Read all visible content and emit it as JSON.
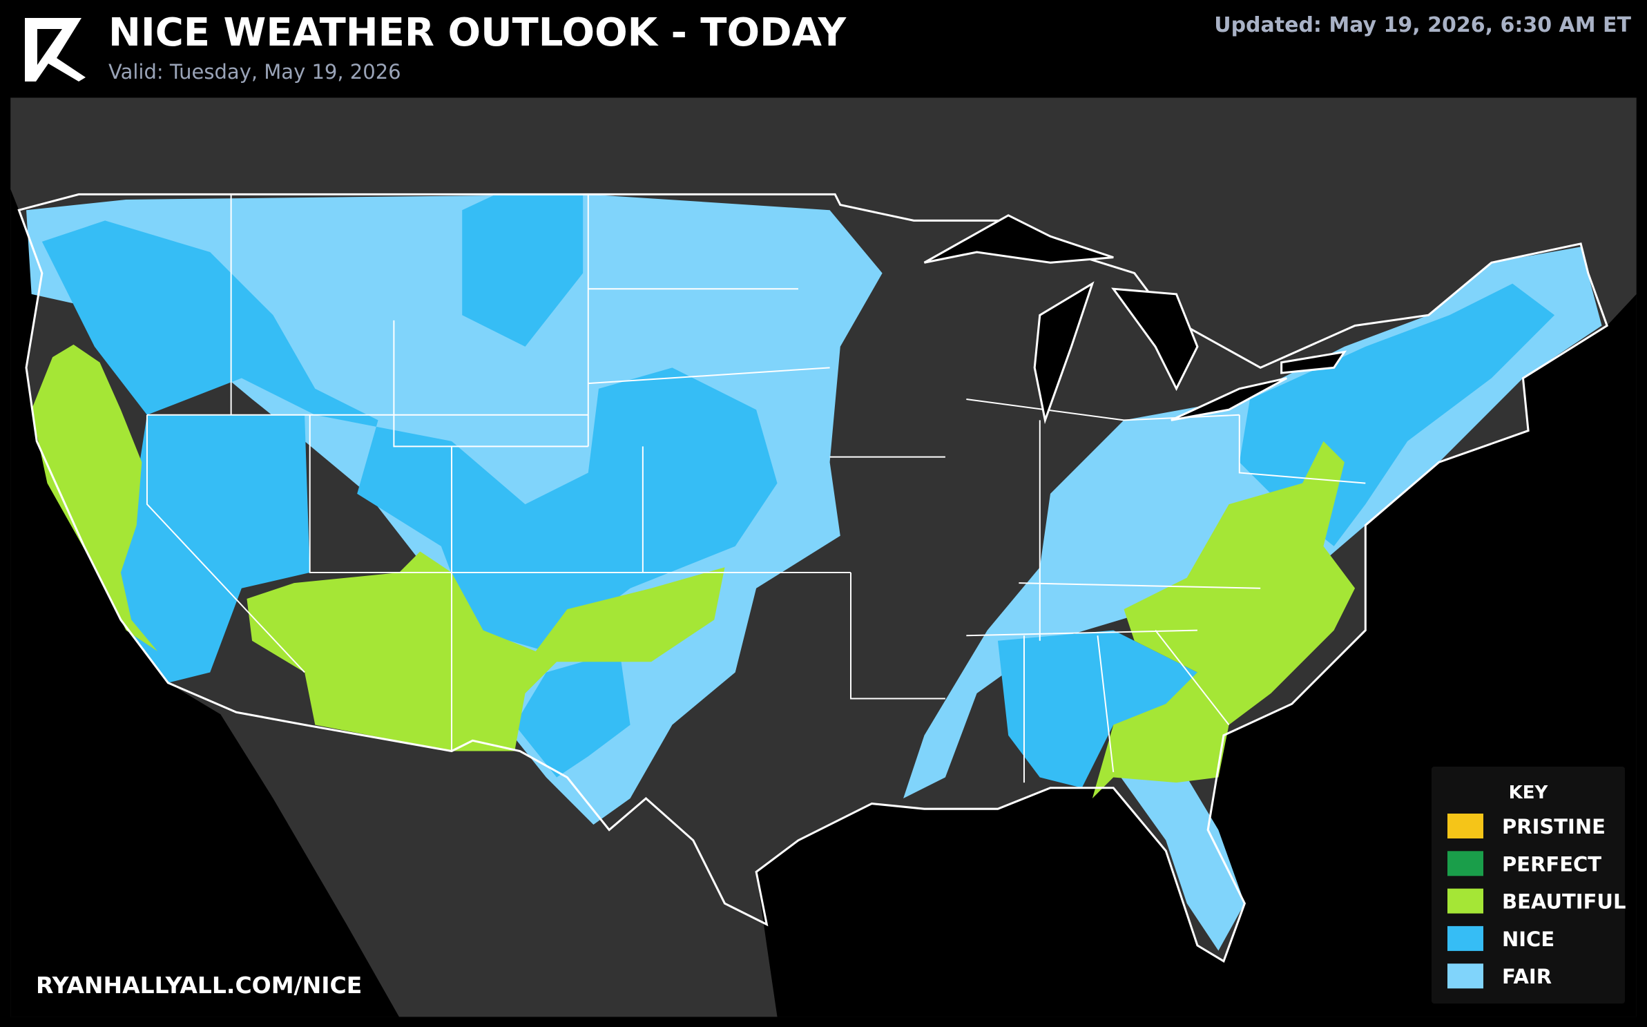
{
  "header": {
    "title": "NICE WEATHER OUTLOOK - TODAY",
    "valid": "Valid: Tuesday, May 19, 2026",
    "updated": "Updated: May 19, 2026, 6:30 AM ET"
  },
  "legend": {
    "title": "KEY",
    "items": [
      {
        "label": "PRISTINE",
        "color": "#f5c518"
      },
      {
        "label": "PERFECT",
        "color": "#1a9e4a"
      },
      {
        "label": "BEAUTIFUL",
        "color": "#a5e636"
      },
      {
        "label": "NICE",
        "color": "#36bdf5"
      },
      {
        "label": "FAIR",
        "color": "#80d4fb"
      }
    ]
  },
  "footer": {
    "url": "RYANHALLYALL.COM/NICE"
  }
}
